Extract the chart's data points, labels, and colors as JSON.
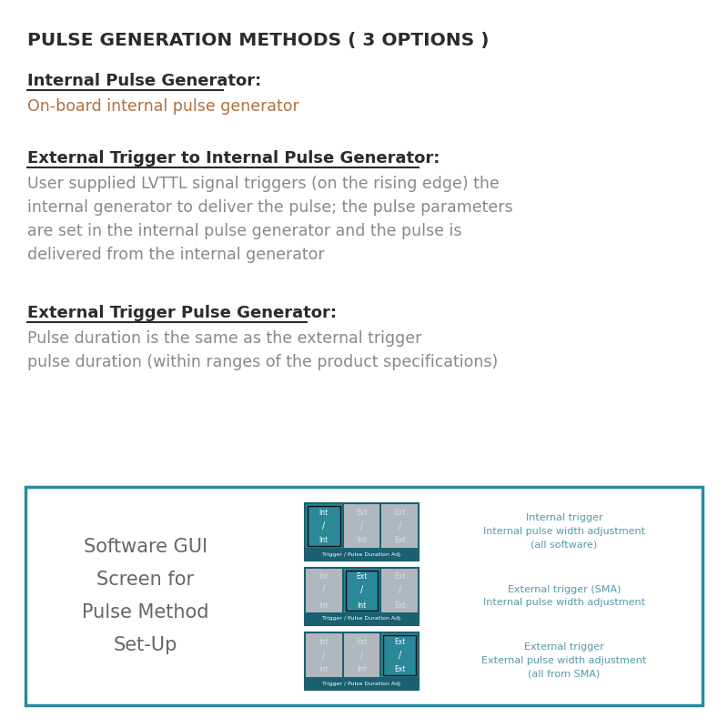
{
  "bg_color": "#ffffff",
  "title": "PULSE GENERATION METHODS ( 3 OPTIONS )",
  "title_fontsize": 14.5,
  "title_color": "#2b2b2b",
  "sections": [
    {
      "heading": "Internal Pulse Generator:",
      "heading_color": "#2b2b2b",
      "body_color": "#b07040",
      "body_lines": [
        "On-board internal pulse generator"
      ]
    },
    {
      "heading": "External Trigger to Internal Pulse Generator:",
      "heading_color": "#2b2b2b",
      "body_color": "#888888",
      "body_lines": [
        "User supplied LVTTL signal triggers (on the rising edge) the",
        "internal generator to deliver the pulse; the pulse parameters",
        "are set in the internal pulse generator and the pulse is",
        "delivered from the internal generator"
      ]
    },
    {
      "heading": "External Trigger Pulse Generator:",
      "heading_color": "#2b2b2b",
      "body_color": "#888888",
      "body_lines": [
        "Pulse duration is the same as the external trigger",
        "pulse duration (within ranges of the product specifications)"
      ]
    }
  ],
  "box_border_color": "#2a8a9e",
  "box_bg_color": "#ffffff",
  "gui_label_lines": [
    "Software GUI",
    "Screen for",
    "Pulse Method",
    "Set-Up"
  ],
  "gui_label_color": "#666666",
  "gui_label_fontsize": 15,
  "panel_captions": [
    [
      "Internal trigger",
      "Internal pulse width adjustment",
      "(all software)"
    ],
    [
      "External trigger (SMA)",
      "Internal pulse width adjustment",
      ""
    ],
    [
      "External trigger",
      "External pulse width adjustment",
      "(all from SMA)"
    ]
  ],
  "panel_caption_color": "#5599aa",
  "teal_dark": "#1a6070",
  "teal_mid": "#2a8899",
  "teal_active": "#2a8899",
  "gray_cell": "#b0b8be",
  "footer_label": "Trigger / Pulse Duration Adj.",
  "heading_fontsize": 13,
  "body_fontsize": 12.5
}
